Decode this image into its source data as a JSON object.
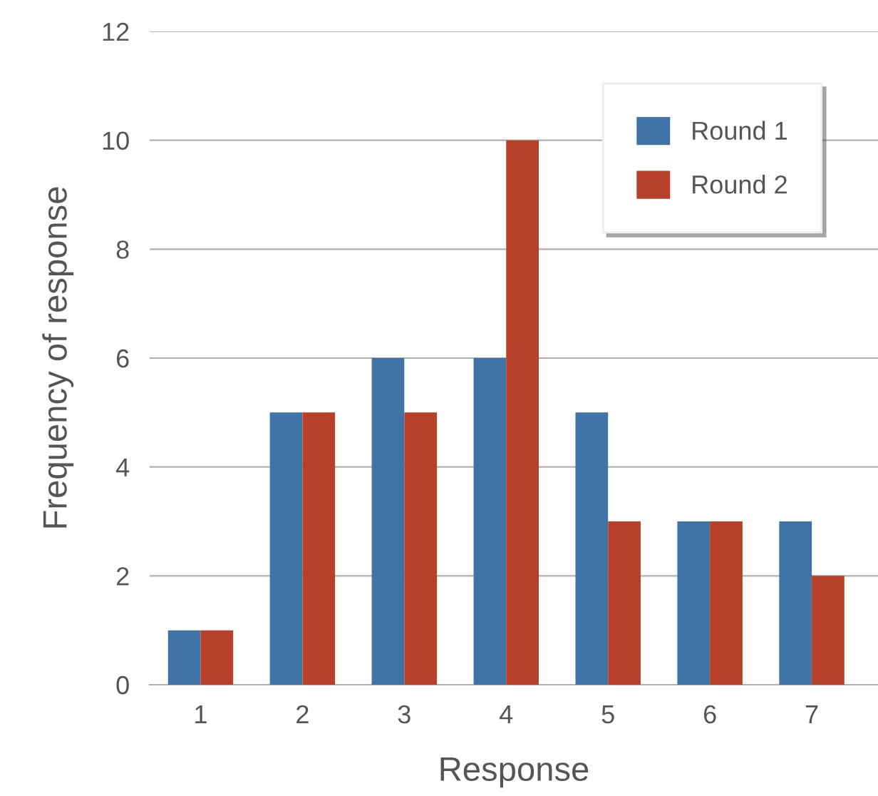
{
  "chart_data": {
    "type": "bar",
    "xlabel": "Response",
    "ylabel": "Frequency of response",
    "categories": [
      "1",
      "2",
      "3",
      "4",
      "5",
      "6",
      "7"
    ],
    "series": [
      {
        "name": "Round 1",
        "color": "#4174a6",
        "values": [
          1,
          5,
          6,
          6,
          5,
          3,
          3
        ]
      },
      {
        "name": "Round 2",
        "color": "#b7402a",
        "values": [
          1,
          5,
          5,
          10,
          3,
          3,
          2
        ]
      }
    ],
    "ylim": [
      0,
      12
    ],
    "yticks": [
      0,
      2,
      4,
      6,
      8,
      10,
      12
    ],
    "grid": "y",
    "legend": "top right"
  }
}
